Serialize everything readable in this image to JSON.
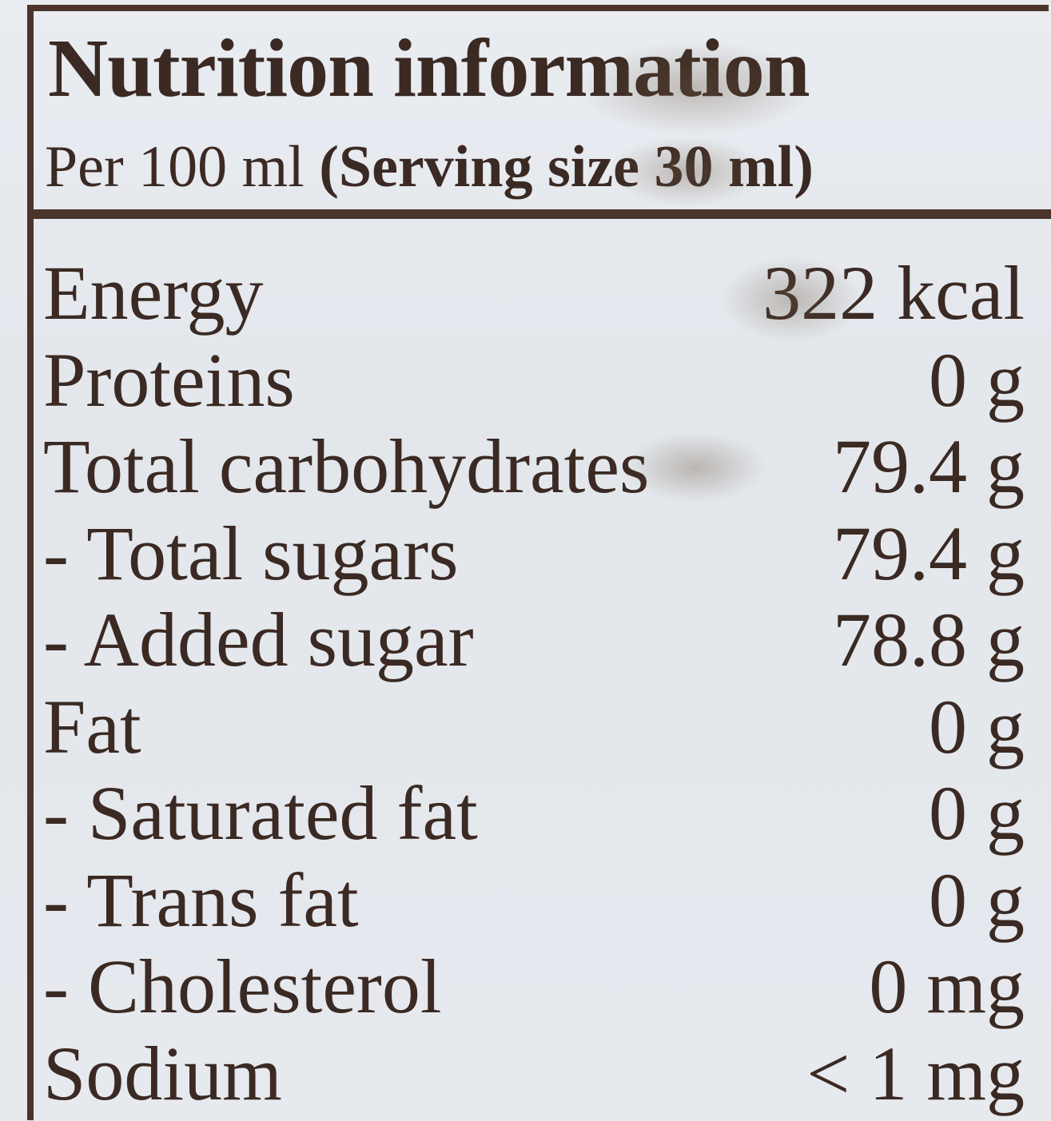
{
  "label": {
    "title": "Nutrition information",
    "serving_prefix": "Per 100 ml ",
    "serving_detail": "(Serving size 30 ml)"
  },
  "rows": [
    {
      "nutrient": "Energy",
      "amount": "322 kcal"
    },
    {
      "nutrient": "Proteins",
      "amount": "0 g"
    },
    {
      "nutrient": "Total carbohydrates",
      "amount": "79.4 g"
    },
    {
      "nutrient": "- Total sugars",
      "amount": "79.4 g"
    },
    {
      "nutrient": "- Added sugar",
      "amount": "78.8 g"
    },
    {
      "nutrient": "Fat",
      "amount": "0 g"
    },
    {
      "nutrient": "- Saturated fat",
      "amount": "0 g"
    },
    {
      "nutrient": "- Trans fat",
      "amount": "0 g"
    },
    {
      "nutrient": "- Cholesterol",
      "amount": "0 mg"
    },
    {
      "nutrient": "Sodium",
      "amount": "< 1 mg"
    }
  ],
  "colors": {
    "ink": "#3b2a23",
    "border": "#4a342b",
    "paper": "#e6e9ee"
  }
}
